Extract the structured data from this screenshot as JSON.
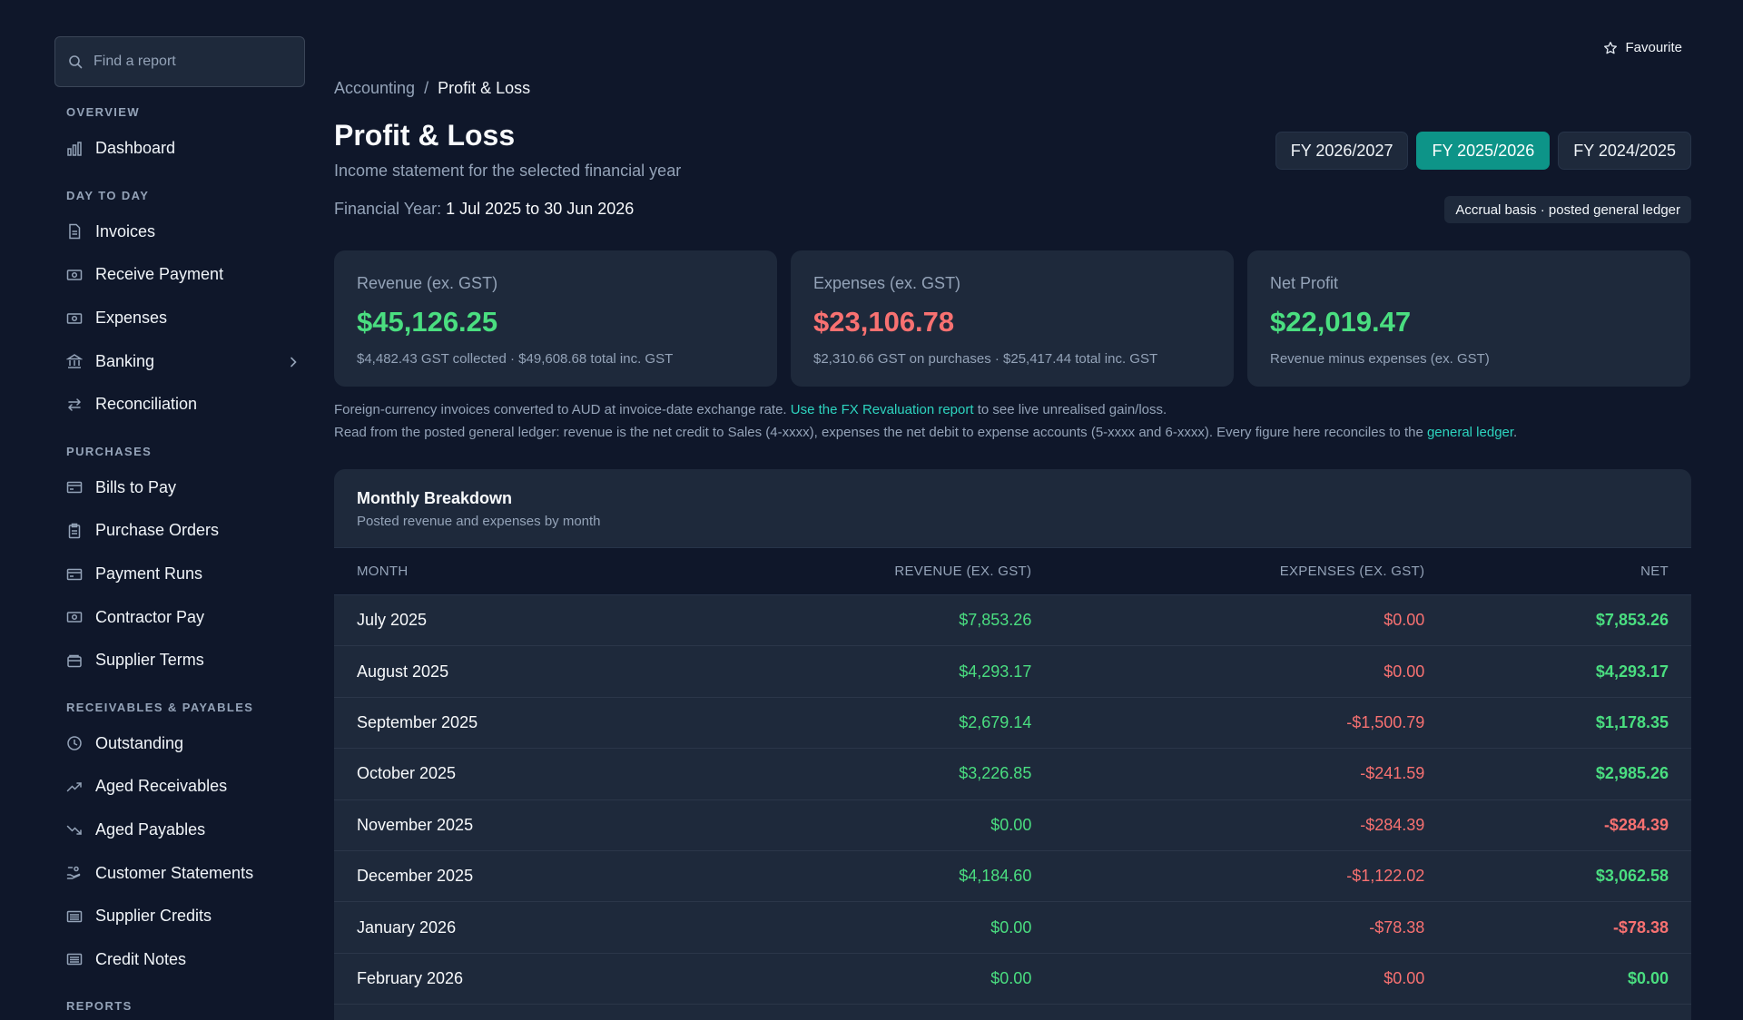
{
  "sidebar": {
    "search_placeholder": "Find a report",
    "sections": [
      {
        "label": "OVERVIEW",
        "items": [
          {
            "label": "Dashboard",
            "icon": "bar-chart-icon"
          }
        ]
      },
      {
        "label": "DAY TO DAY",
        "items": [
          {
            "label": "Invoices",
            "icon": "document-icon"
          },
          {
            "label": "Receive Payment",
            "icon": "banknote-icon"
          },
          {
            "label": "Expenses",
            "icon": "banknote-icon"
          },
          {
            "label": "Banking",
            "icon": "bank-icon",
            "has_submenu": true
          },
          {
            "label": "Reconciliation",
            "icon": "swap-arrows-icon"
          }
        ]
      },
      {
        "label": "PURCHASES",
        "items": [
          {
            "label": "Bills to Pay",
            "icon": "credit-card-icon"
          },
          {
            "label": "Purchase Orders",
            "icon": "clipboard-icon"
          },
          {
            "label": "Payment Runs",
            "icon": "credit-card-icon"
          },
          {
            "label": "Contractor Pay",
            "icon": "banknote-icon"
          },
          {
            "label": "Supplier Terms",
            "icon": "wallet-icon"
          }
        ]
      },
      {
        "label": "RECEIVABLES & PAYABLES",
        "items": [
          {
            "label": "Outstanding",
            "icon": "clock-icon"
          },
          {
            "label": "Aged Receivables",
            "icon": "trend-up-icon"
          },
          {
            "label": "Aged Payables",
            "icon": "trend-down-icon"
          },
          {
            "label": "Customer Statements",
            "icon": "hand-coins-icon"
          },
          {
            "label": "Supplier Credits",
            "icon": "list-card-icon"
          },
          {
            "label": "Credit Notes",
            "icon": "list-card-icon"
          }
        ]
      },
      {
        "label": "REPORTS",
        "items": []
      }
    ]
  },
  "header": {
    "favourite_label": "Favourite",
    "breadcrumb": {
      "parent": "Accounting",
      "separator": "/",
      "current": "Profit & Loss"
    },
    "title": "Profit & Loss",
    "subtitle": "Income statement for the selected financial year",
    "fy_prefix": "Financial Year:",
    "fy_range": "1 Jul 2025 to 30 Jun 2026",
    "fy_tabs": [
      {
        "label": "FY 2026/2027",
        "active": false
      },
      {
        "label": "FY 2025/2026",
        "active": true
      },
      {
        "label": "FY 2024/2025",
        "active": false
      }
    ],
    "basis_badge": "Accrual basis · posted general ledger"
  },
  "cards": [
    {
      "label": "Revenue (ex. GST)",
      "value": "$45,126.25",
      "sub": "$4,482.43 GST collected · $49,608.68 total inc. GST",
      "tone": "pos"
    },
    {
      "label": "Expenses (ex. GST)",
      "value": "$23,106.78",
      "sub": "$2,310.66 GST on purchases · $25,417.44 total inc. GST",
      "tone": "neg"
    },
    {
      "label": "Net Profit",
      "value": "$22,019.47",
      "sub": "Revenue minus expenses (ex. GST)",
      "tone": "pos"
    }
  ],
  "notes": {
    "line1_before": "Foreign-currency invoices converted to AUD at invoice-date exchange rate.",
    "line1_link": "Use the FX Revaluation report",
    "line1_after": "to see live unrealised gain/loss.",
    "line2_before": "Read from the posted general ledger: revenue is the net credit to Sales (4-xxxx), expenses the net debit to expense accounts (5-xxxx and 6-xxxx). Every figure here reconciles to the",
    "line2_link": "general ledger",
    "line2_after": "."
  },
  "breakdown": {
    "title": "Monthly Breakdown",
    "subtitle": "Posted revenue and expenses by month",
    "columns": [
      "MONTH",
      "REVENUE (EX. GST)",
      "EXPENSES (EX. GST)",
      "NET"
    ],
    "rows": [
      {
        "month": "July 2025",
        "revenue": "$7,853.26",
        "expenses": "$0.00",
        "net": "$7,853.26",
        "net_tone": "pos"
      },
      {
        "month": "August 2025",
        "revenue": "$4,293.17",
        "expenses": "$0.00",
        "net": "$4,293.17",
        "net_tone": "pos"
      },
      {
        "month": "September 2025",
        "revenue": "$2,679.14",
        "expenses": "-$1,500.79",
        "net": "$1,178.35",
        "net_tone": "pos"
      },
      {
        "month": "October 2025",
        "revenue": "$3,226.85",
        "expenses": "-$241.59",
        "net": "$2,985.26",
        "net_tone": "pos"
      },
      {
        "month": "November 2025",
        "revenue": "$0.00",
        "expenses": "-$284.39",
        "net": "-$284.39",
        "net_tone": "neg"
      },
      {
        "month": "December 2025",
        "revenue": "$4,184.60",
        "expenses": "-$1,122.02",
        "net": "$3,062.58",
        "net_tone": "pos"
      },
      {
        "month": "January 2026",
        "revenue": "$0.00",
        "expenses": "-$78.38",
        "net": "-$78.38",
        "net_tone": "neg"
      },
      {
        "month": "February 2026",
        "revenue": "$0.00",
        "expenses": "$0.00",
        "net": "$0.00",
        "net_tone": "pos"
      },
      {
        "month": "",
        "revenue": "",
        "expenses": "",
        "net": "",
        "net_tone": "pos"
      }
    ]
  },
  "colors": {
    "accent": "#0d9488",
    "positive": "#4ade80",
    "negative": "#f87171",
    "link": "#2dd4bf"
  }
}
